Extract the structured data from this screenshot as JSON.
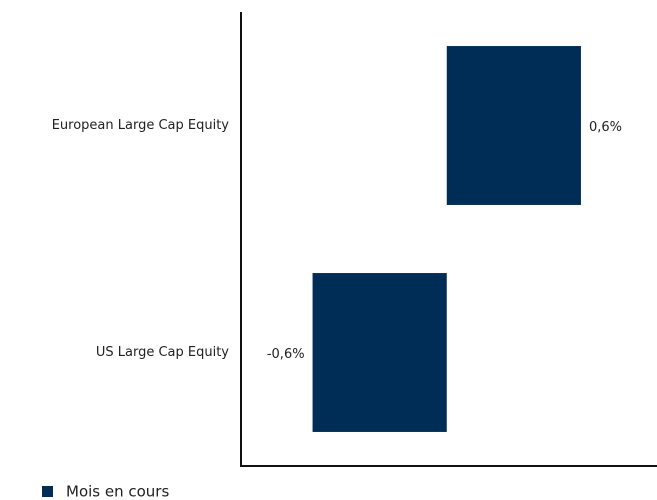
{
  "chart_data": {
    "type": "hbar",
    "categories": [
      "European Large Cap Equity",
      "US Large Cap Equity"
    ],
    "series": [
      {
        "name": "Mois en cours",
        "color": "#002d55",
        "values": [
          0.6,
          -0.6
        ],
        "value_labels": [
          "0,6%",
          "-0,6%"
        ]
      }
    ],
    "xlim": [
      -0.92,
      0.94
    ],
    "legend": "bottom-left"
  }
}
